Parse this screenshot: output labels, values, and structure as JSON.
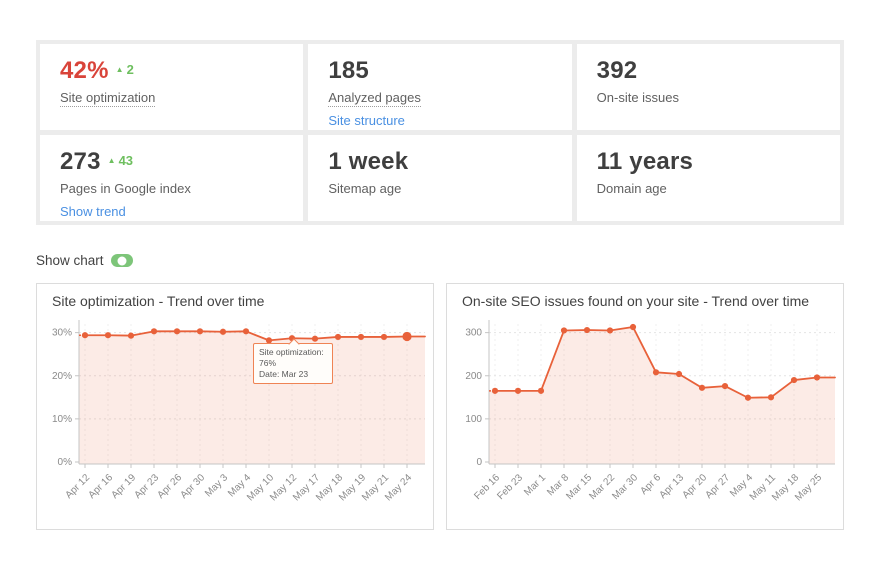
{
  "colors": {
    "accent_red": "#d9443a",
    "accent_green": "#6ebf5f",
    "link_blue": "#4a90e2",
    "toggle_green": "#7dc579",
    "chart_line_orange": "#e8613a",
    "chart_fill_peach": "rgba(232,97,58,0.13)",
    "panel_gray": "#ececec"
  },
  "icons": {
    "up_triangle": "▲"
  },
  "stats": {
    "cards": [
      {
        "value": "42%",
        "red": true,
        "delta_icon": "▲",
        "delta": "2",
        "label": "Site optimization",
        "label_dotted": true
      },
      {
        "value": "185",
        "label": "Analyzed pages",
        "label_dotted": true,
        "link": "Site structure"
      },
      {
        "value": "392",
        "label": "On-site issues"
      },
      {
        "value": "273",
        "delta_icon": "▲",
        "delta": "43",
        "label": "Pages in Google index",
        "link": "Show trend"
      },
      {
        "value": "1 week",
        "label": "Sitemap age"
      },
      {
        "value": "11 years",
        "label": "Domain age"
      }
    ]
  },
  "show_chart": {
    "label": "Show chart",
    "enabled": true
  },
  "chart_data": [
    {
      "type": "area",
      "title": "Site optimization - Trend over time",
      "xlabel": "",
      "ylabel": "",
      "ylim": [
        0,
        32
      ],
      "yticks": [
        0,
        10,
        20,
        30
      ],
      "ytick_suffix": "%",
      "grid": true,
      "legend": "none",
      "categories": [
        "Apr 12",
        "Apr 16",
        "Apr 19",
        "Apr 23",
        "Apr 26",
        "Apr 30",
        "May 3",
        "May 4",
        "May 10",
        "May 12",
        "May 17",
        "May 18",
        "May 19",
        "May 21",
        "May 24"
      ],
      "values": [
        29.4,
        29.4,
        29.3,
        30.3,
        30.3,
        30.3,
        30.2,
        30.3,
        28.2,
        28.7,
        28.6,
        29.0,
        29.0,
        29.0,
        29.1
      ],
      "line_color": "#e8613a",
      "fill_color": "rgba(232,97,58,0.13)",
      "highlight_last": true,
      "tooltip": {
        "line1": "Site optimization: 76%",
        "line2": "Date: Mar 23",
        "anchor_category": "May 12"
      }
    },
    {
      "type": "area",
      "title": "On-site SEO issues found on your site - Trend over time",
      "xlabel": "",
      "ylabel": "",
      "ylim": [
        0,
        320
      ],
      "yticks": [
        0,
        100,
        200,
        300
      ],
      "ytick_suffix": "",
      "grid": true,
      "legend": "none",
      "categories": [
        "Feb 16",
        "Feb 23",
        "Mar 1",
        "Mar 8",
        "Mar 15",
        "Mar 22",
        "Mar 30",
        "Apr 6",
        "Apr 13",
        "Apr 20",
        "Apr 27",
        "May 4",
        "May 11",
        "May 18",
        "May 25"
      ],
      "values": [
        165,
        165,
        165,
        305,
        306,
        305,
        313,
        208,
        204,
        172,
        176,
        149,
        150,
        190,
        196
      ],
      "line_color": "#e8613a",
      "fill_color": "rgba(232,97,58,0.13)",
      "highlight_last": false
    }
  ]
}
